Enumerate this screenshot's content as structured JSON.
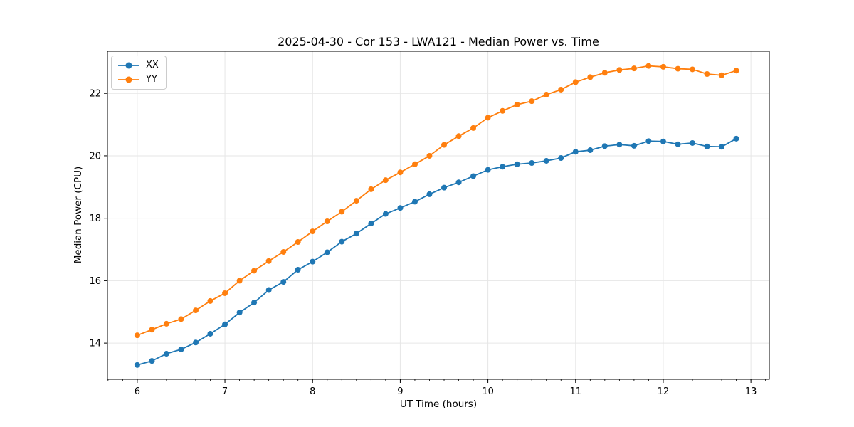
{
  "chart_data": {
    "type": "line",
    "title": "2025-04-30 - Cor 153 - LWA121 - Median Power vs. Time",
    "xlabel": "UT Time (hours)",
    "ylabel": "Median Power (CPU)",
    "xlim": [
      5.66,
      13.21
    ],
    "ylim": [
      12.84,
      23.35
    ],
    "xticks": [
      6,
      7,
      8,
      9,
      10,
      11,
      12,
      13
    ],
    "yticks": [
      14,
      16,
      18,
      20,
      22
    ],
    "x_minor_step": 0.166667,
    "grid": true,
    "grid_color": "#e6e6e6",
    "spine_color": "#000000",
    "text_color": "#000000",
    "legend_position": "upper-left",
    "marker": "circle",
    "x": [
      6.0,
      6.167,
      6.333,
      6.5,
      6.667,
      6.833,
      7.0,
      7.167,
      7.333,
      7.5,
      7.667,
      7.833,
      8.0,
      8.167,
      8.333,
      8.5,
      8.667,
      8.833,
      9.0,
      9.167,
      9.333,
      9.5,
      9.667,
      9.833,
      10.0,
      10.167,
      10.333,
      10.5,
      10.667,
      10.833,
      11.0,
      11.167,
      11.333,
      11.5,
      11.667,
      11.833,
      12.0,
      12.167,
      12.333,
      12.5,
      12.667,
      12.833
    ],
    "series": [
      {
        "name": "XX",
        "color": "#1f77b4",
        "values": [
          13.3,
          13.43,
          13.66,
          13.8,
          14.02,
          14.3,
          14.6,
          14.98,
          15.3,
          15.7,
          15.96,
          16.35,
          16.61,
          16.91,
          17.25,
          17.51,
          17.83,
          18.14,
          18.33,
          18.53,
          18.77,
          18.98,
          19.15,
          19.35,
          19.55,
          19.65,
          19.73,
          19.77,
          19.84,
          19.93,
          20.13,
          20.18,
          20.31,
          20.36,
          20.32,
          20.47,
          20.46,
          20.37,
          20.41,
          20.3,
          20.29,
          20.55
        ]
      },
      {
        "name": "YY",
        "color": "#ff7f0e",
        "values": [
          14.25,
          14.43,
          14.62,
          14.77,
          15.05,
          15.35,
          15.6,
          16.0,
          16.32,
          16.63,
          16.92,
          17.24,
          17.58,
          17.9,
          18.21,
          18.56,
          18.93,
          19.22,
          19.47,
          19.73,
          20.0,
          20.35,
          20.63,
          20.89,
          21.22,
          21.44,
          21.64,
          21.75,
          21.96,
          22.12,
          22.36,
          22.52,
          22.66,
          22.75,
          22.8,
          22.88,
          22.85,
          22.79,
          22.77,
          22.62,
          22.58,
          22.73
        ]
      }
    ]
  }
}
